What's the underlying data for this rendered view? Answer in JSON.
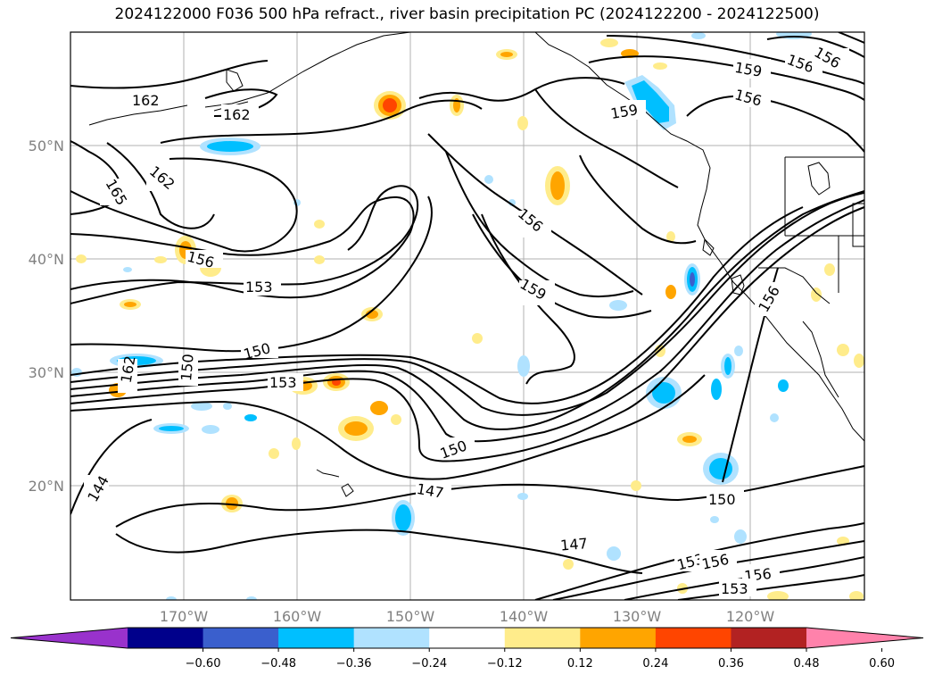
{
  "title": "2024122000 F036 500 hPa refract., river basin precipitation PC (2024122200 - 2024122500)",
  "lat_labels": [
    "50°N",
    "40°N",
    "30°N",
    "20°N"
  ],
  "lon_labels": [
    "170°W",
    "160°W",
    "150°W",
    "140°W",
    "130°W",
    "120°W"
  ],
  "contour_labels": [
    "162",
    "162",
    "165",
    "162",
    "156",
    "153",
    "150",
    "162",
    "150",
    "153",
    "150",
    "147",
    "144",
    "156",
    "159",
    "156",
    "159",
    "156",
    "159",
    "156",
    "150",
    "153",
    "156",
    "156",
    "153",
    "147"
  ],
  "colorbar": {
    "ticks": [
      "−0.60",
      "−0.48",
      "−0.36",
      "−0.24",
      "−0.12",
      "0.12",
      "0.24",
      "0.36",
      "0.48",
      "0.60"
    ],
    "colors": [
      "#9932cc",
      "#00008b",
      "#3a5fcd",
      "#00bfff",
      "#b0e2ff",
      "#ffffff",
      "#ffec8b",
      "#ffa500",
      "#ff4500",
      "#b22222",
      "#ff82ab"
    ]
  }
}
